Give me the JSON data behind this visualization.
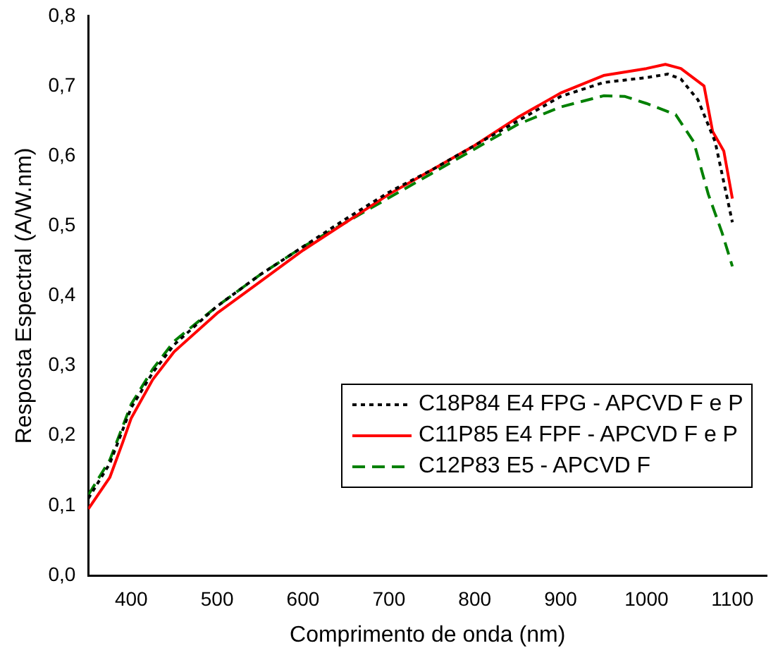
{
  "chart_data": {
    "type": "line",
    "xlabel": "Comprimento de onda (nm)",
    "ylabel": "Resposta Espectral (A/W.nm)",
    "xlim": [
      350,
      1140
    ],
    "xticks": [
      400,
      500,
      600,
      700,
      800,
      900,
      1000,
      1100
    ],
    "ylim": [
      0,
      0.8
    ],
    "yticks": [
      {
        "value": 0,
        "label": "0,0"
      },
      {
        "value": 0.1,
        "label": "0,1"
      },
      {
        "value": 0.2,
        "label": "0,2"
      },
      {
        "value": 0.3,
        "label": "0,3"
      },
      {
        "value": 0.4,
        "label": "0,4"
      },
      {
        "value": 0.5,
        "label": "0,5"
      },
      {
        "value": 0.6,
        "label": "0,6"
      },
      {
        "value": 0.7,
        "label": "0,7"
      },
      {
        "value": 0.8,
        "label": "0,8"
      }
    ],
    "grid": false,
    "legend": "bottom right",
    "marker": "none",
    "series": [
      {
        "name": "C18P84 E4 FPG - APCVD F e P",
        "color": "#000000",
        "line_style": "dotted",
        "x": [
          350,
          375,
          400,
          425,
          450,
          500,
          550,
          600,
          650,
          700,
          750,
          800,
          850,
          900,
          950,
          1000,
          1025,
          1040,
          1060,
          1080,
          1100
        ],
        "values": [
          0.11,
          0.16,
          0.24,
          0.29,
          0.33,
          0.385,
          0.43,
          0.47,
          0.51,
          0.548,
          0.58,
          0.615,
          0.65,
          0.685,
          0.705,
          0.712,
          0.717,
          0.71,
          0.68,
          0.62,
          0.505
        ]
      },
      {
        "name": "C11P85 E4 FPF - APCVD F e P",
        "color": "#ff0000",
        "line_style": "solid",
        "x": [
          350,
          375,
          390,
          400,
          425,
          450,
          500,
          550,
          600,
          650,
          700,
          750,
          800,
          850,
          900,
          950,
          1000,
          1022,
          1040,
          1067,
          1077,
          1090,
          1100
        ],
        "values": [
          0.095,
          0.14,
          0.19,
          0.225,
          0.28,
          0.32,
          0.375,
          0.42,
          0.465,
          0.505,
          0.545,
          0.58,
          0.615,
          0.655,
          0.69,
          0.715,
          0.725,
          0.731,
          0.725,
          0.7,
          0.635,
          0.607,
          0.539
        ]
      },
      {
        "name": "C12P83 E5 - APCVD F",
        "color": "#008000",
        "line_style": "dashed",
        "x": [
          350,
          375,
          400,
          425,
          450,
          500,
          550,
          600,
          650,
          700,
          750,
          800,
          850,
          900,
          950,
          975,
          1000,
          1034,
          1055,
          1072,
          1088,
          1100
        ],
        "values": [
          0.115,
          0.165,
          0.245,
          0.295,
          0.335,
          0.385,
          0.43,
          0.47,
          0.505,
          0.54,
          0.575,
          0.61,
          0.645,
          0.67,
          0.686,
          0.685,
          0.675,
          0.659,
          0.62,
          0.545,
          0.49,
          0.442
        ]
      }
    ]
  }
}
